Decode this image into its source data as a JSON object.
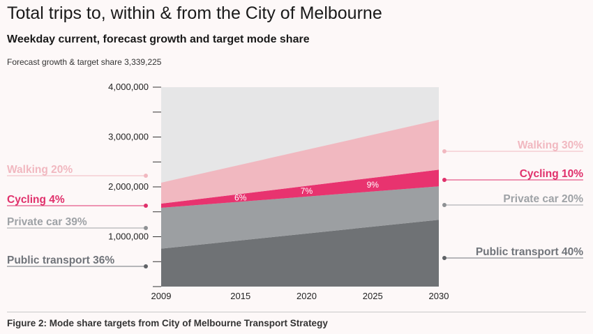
{
  "title": "Total trips to, within & from the City of Melbourne",
  "subtitle": "Weekday current, forecast growth and target mode share",
  "note": "Forecast growth & target share 3,339,225",
  "caption": "Figure 2: Mode share targets from City of Melbourne Transport Strategy",
  "colors": {
    "walking": "#f1b8c0",
    "cycling": "#e8336f",
    "private_car": "#9c9fa2",
    "public_transport": "#6f7275",
    "plot_bg": "#e6e6e7"
  },
  "chart_data": {
    "type": "area",
    "x": [
      2009,
      2030
    ],
    "xticks": [
      "2009",
      "2015",
      "2020",
      "2025",
      "2030"
    ],
    "yticks": [
      "4,000,000",
      "3,000,000",
      "2,000,000",
      "1,000,000"
    ],
    "ylim": [
      0,
      4000000
    ],
    "stacked": true,
    "series": [
      {
        "key": "public_transport",
        "values": [
          760000,
          1340000
        ]
      },
      {
        "key": "private_car",
        "values": [
          820000,
          670000
        ]
      },
      {
        "key": "cycling",
        "values": [
          84000,
          334000
        ]
      },
      {
        "key": "walking",
        "values": [
          420000,
          1000000
        ]
      }
    ],
    "left_labels": [
      {
        "key": "walking",
        "text": "Walking 20%"
      },
      {
        "key": "cycling",
        "text": "Cycling 4%"
      },
      {
        "key": "private_car",
        "text": "Private car 39%"
      },
      {
        "key": "public_transport",
        "text": "Public transport 36%"
      }
    ],
    "right_labels": [
      {
        "key": "walking",
        "text": "Walking 30%"
      },
      {
        "key": "cycling",
        "text": "Cycling 10%"
      },
      {
        "key": "private_car",
        "text": "Private car 20%"
      },
      {
        "key": "public_transport",
        "text": "Public transport 40%"
      }
    ],
    "inner_labels": [
      {
        "x": 2015,
        "text": "6%"
      },
      {
        "x": 2020,
        "text": "7%"
      },
      {
        "x": 2025,
        "text": "9%"
      }
    ]
  }
}
